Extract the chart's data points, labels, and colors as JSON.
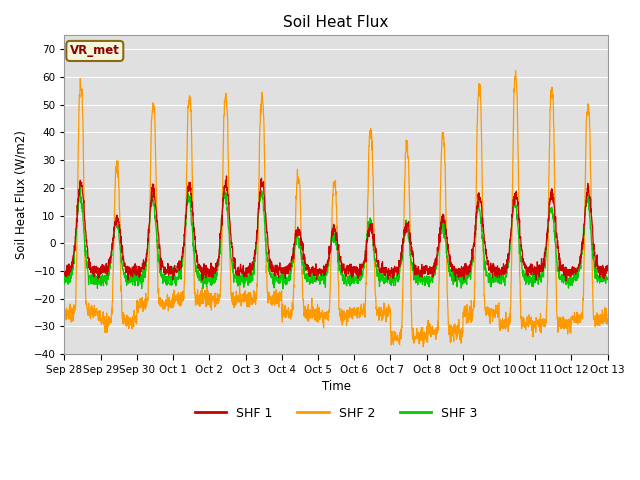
{
  "title": "Soil Heat Flux",
  "ylabel": "Soil Heat Flux (W/m2)",
  "xlabel": "Time",
  "ylim": [
    -40,
    75
  ],
  "yticks": [
    -40,
    -30,
    -20,
    -10,
    0,
    10,
    20,
    30,
    40,
    50,
    60,
    70
  ],
  "colors": {
    "SHF 1": "#cc0000",
    "SHF 2": "#ff9900",
    "SHF 3": "#00cc00"
  },
  "legend_label": "VR_met",
  "background_color": "#e0e0e0",
  "x_tick_labels": [
    "Sep 28",
    "Sep 29",
    "Sep 30",
    "Oct 1",
    "Oct 2",
    "Oct 3",
    "Oct 4",
    "Oct 5",
    "Oct 6",
    "Oct 7",
    "Oct 8",
    "Oct 9",
    "Oct 10",
    "Oct 11",
    "Oct 12",
    "Oct 13"
  ],
  "n_days": 15,
  "pts_per_day": 144,
  "shf2_peaks": [
    57,
    28,
    50,
    52.5,
    53,
    52,
    24,
    21,
    40,
    35,
    39,
    56,
    60,
    55,
    49
  ],
  "shf2_troughs": [
    -25,
    -28,
    -22,
    -20,
    -20,
    -20,
    -25,
    -26,
    -25,
    -34,
    -32,
    -25,
    -29,
    -29,
    -27
  ],
  "shf1_peaks": [
    22,
    9,
    20,
    21,
    22,
    22,
    5,
    5,
    6,
    7,
    9,
    17,
    18,
    18,
    19
  ],
  "shf3_peaks": [
    18,
    8,
    16,
    17,
    18,
    18,
    3,
    4,
    8,
    6,
    7,
    14,
    15,
    13,
    16
  ]
}
